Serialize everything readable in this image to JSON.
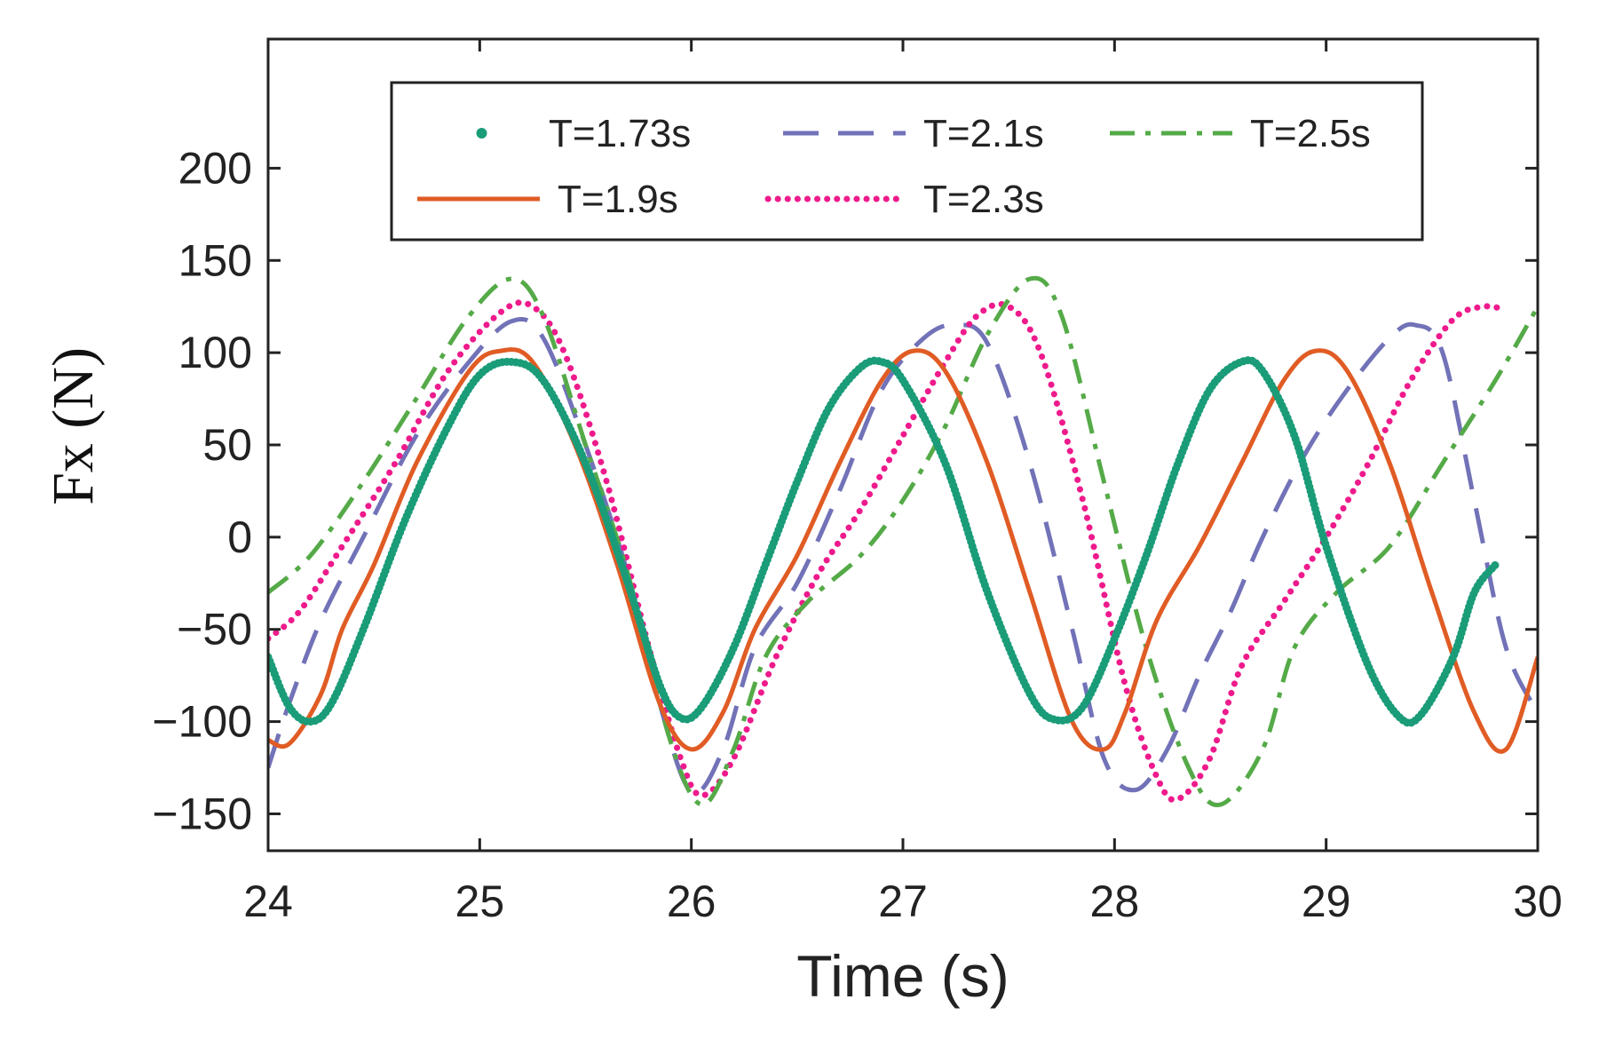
{
  "chart_data": {
    "type": "line",
    "title": "",
    "xlabel": "Time (s)",
    "ylabel": "Fx (N)",
    "xlim": [
      24,
      30
    ],
    "ylim": [
      -170,
      270
    ],
    "xticks": [
      24,
      25,
      26,
      27,
      28,
      29,
      30
    ],
    "yticks": [
      -150,
      -100,
      -50,
      0,
      50,
      100,
      150,
      200
    ],
    "xtick_labels": [
      "24",
      "25",
      "26",
      "27",
      "28",
      "29",
      "30"
    ],
    "ytick_labels": [
      "−150",
      "−100",
      "−50",
      "0",
      "50",
      "100",
      "150",
      "200"
    ],
    "grid": false,
    "legend_position": "top",
    "series": [
      {
        "name": "T=1.73s",
        "color": "#1a9c79",
        "style": "dot",
        "points": [
          [
            24.0,
            -65
          ],
          [
            24.1,
            -92
          ],
          [
            24.2,
            -100
          ],
          [
            24.3,
            -90
          ],
          [
            24.45,
            -50
          ],
          [
            24.65,
            10
          ],
          [
            24.85,
            60
          ],
          [
            25.0,
            88
          ],
          [
            25.15,
            95
          ],
          [
            25.3,
            85
          ],
          [
            25.5,
            40
          ],
          [
            25.7,
            -25
          ],
          [
            25.85,
            -80
          ],
          [
            25.95,
            -98
          ],
          [
            26.05,
            -92
          ],
          [
            26.2,
            -60
          ],
          [
            26.35,
            -15
          ],
          [
            26.5,
            30
          ],
          [
            26.65,
            70
          ],
          [
            26.8,
            92
          ],
          [
            26.9,
            95
          ],
          [
            27.0,
            85
          ],
          [
            27.2,
            40
          ],
          [
            27.4,
            -30
          ],
          [
            27.6,
            -85
          ],
          [
            27.72,
            -99
          ],
          [
            27.85,
            -92
          ],
          [
            28.0,
            -55
          ],
          [
            28.15,
            -10
          ],
          [
            28.3,
            40
          ],
          [
            28.45,
            80
          ],
          [
            28.6,
            95
          ],
          [
            28.7,
            90
          ],
          [
            28.85,
            55
          ],
          [
            29.0,
            -5
          ],
          [
            29.2,
            -70
          ],
          [
            29.35,
            -98
          ],
          [
            29.45,
            -96
          ],
          [
            29.6,
            -65
          ],
          [
            29.7,
            -30
          ],
          [
            29.8,
            -15
          ]
        ]
      },
      {
        "name": "T=2.1s",
        "color": "#7272b8",
        "style": "dash",
        "points": [
          [
            24.0,
            -125
          ],
          [
            24.1,
            -90
          ],
          [
            24.25,
            -45
          ],
          [
            24.45,
            0
          ],
          [
            24.7,
            55
          ],
          [
            24.95,
            95
          ],
          [
            25.15,
            117
          ],
          [
            25.3,
            108
          ],
          [
            25.5,
            50
          ],
          [
            25.7,
            -20
          ],
          [
            25.85,
            -90
          ],
          [
            26.0,
            -138
          ],
          [
            26.15,
            -115
          ],
          [
            26.3,
            -60
          ],
          [
            26.5,
            -25
          ],
          [
            26.7,
            25
          ],
          [
            26.9,
            80
          ],
          [
            27.1,
            108
          ],
          [
            27.25,
            115
          ],
          [
            27.4,
            105
          ],
          [
            27.6,
            40
          ],
          [
            27.8,
            -50
          ],
          [
            27.95,
            -120
          ],
          [
            28.1,
            -137
          ],
          [
            28.25,
            -115
          ],
          [
            28.4,
            -75
          ],
          [
            28.55,
            -40
          ],
          [
            28.7,
            0
          ],
          [
            28.9,
            45
          ],
          [
            29.1,
            80
          ],
          [
            29.3,
            108
          ],
          [
            29.42,
            115
          ],
          [
            29.55,
            100
          ],
          [
            29.7,
            20
          ],
          [
            29.85,
            -60
          ],
          [
            30.0,
            -95
          ]
        ]
      },
      {
        "name": "T=2.5s",
        "color": "#55aa48",
        "style": "dashdot",
        "points": [
          [
            24.0,
            -30
          ],
          [
            24.2,
            -10
          ],
          [
            24.45,
            30
          ],
          [
            24.7,
            75
          ],
          [
            24.95,
            120
          ],
          [
            25.15,
            140
          ],
          [
            25.3,
            120
          ],
          [
            25.5,
            50
          ],
          [
            25.7,
            -20
          ],
          [
            25.9,
            -110
          ],
          [
            26.05,
            -145
          ],
          [
            26.2,
            -115
          ],
          [
            26.35,
            -65
          ],
          [
            26.55,
            -35
          ],
          [
            26.8,
            -10
          ],
          [
            27.0,
            20
          ],
          [
            27.2,
            60
          ],
          [
            27.4,
            110
          ],
          [
            27.6,
            140
          ],
          [
            27.75,
            120
          ],
          [
            27.95,
            30
          ],
          [
            28.15,
            -60
          ],
          [
            28.35,
            -125
          ],
          [
            28.5,
            -145
          ],
          [
            28.7,
            -115
          ],
          [
            28.85,
            -60
          ],
          [
            29.05,
            -30
          ],
          [
            29.3,
            -5
          ],
          [
            29.55,
            40
          ],
          [
            29.8,
            85
          ],
          [
            30.0,
            125
          ]
        ]
      },
      {
        "name": "T=1.9s",
        "color": "#e05c24",
        "style": "solid",
        "points": [
          [
            24.0,
            -110
          ],
          [
            24.1,
            -112
          ],
          [
            24.25,
            -85
          ],
          [
            24.35,
            -50
          ],
          [
            24.5,
            -15
          ],
          [
            24.7,
            40
          ],
          [
            24.95,
            90
          ],
          [
            25.1,
            101
          ],
          [
            25.25,
            95
          ],
          [
            25.45,
            50
          ],
          [
            25.65,
            -15
          ],
          [
            25.85,
            -90
          ],
          [
            26.0,
            -115
          ],
          [
            26.15,
            -95
          ],
          [
            26.3,
            -50
          ],
          [
            26.5,
            -10
          ],
          [
            26.7,
            40
          ],
          [
            26.9,
            85
          ],
          [
            27.05,
            101
          ],
          [
            27.2,
            90
          ],
          [
            27.4,
            40
          ],
          [
            27.6,
            -30
          ],
          [
            27.8,
            -100
          ],
          [
            27.95,
            -115
          ],
          [
            28.05,
            -95
          ],
          [
            28.2,
            -45
          ],
          [
            28.4,
            -5
          ],
          [
            28.6,
            40
          ],
          [
            28.8,
            85
          ],
          [
            28.95,
            101
          ],
          [
            29.1,
            90
          ],
          [
            29.3,
            40
          ],
          [
            29.5,
            -30
          ],
          [
            29.7,
            -95
          ],
          [
            29.85,
            -115
          ],
          [
            30.0,
            -65
          ]
        ]
      },
      {
        "name": "T=2.3s",
        "color": "#ee1a8c",
        "style": "dotdense",
        "points": [
          [
            24.0,
            -55
          ],
          [
            24.15,
            -40
          ],
          [
            24.35,
            -5
          ],
          [
            24.6,
            40
          ],
          [
            24.85,
            90
          ],
          [
            25.1,
            122
          ],
          [
            25.25,
            125
          ],
          [
            25.4,
            100
          ],
          [
            25.6,
            30
          ],
          [
            25.8,
            -60
          ],
          [
            25.95,
            -120
          ],
          [
            26.05,
            -140
          ],
          [
            26.2,
            -120
          ],
          [
            26.4,
            -65
          ],
          [
            26.6,
            -20
          ],
          [
            26.8,
            15
          ],
          [
            27.0,
            55
          ],
          [
            27.2,
            95
          ],
          [
            27.35,
            120
          ],
          [
            27.5,
            125
          ],
          [
            27.65,
            100
          ],
          [
            27.85,
            20
          ],
          [
            28.05,
            -80
          ],
          [
            28.2,
            -130
          ],
          [
            28.3,
            -142
          ],
          [
            28.45,
            -120
          ],
          [
            28.6,
            -70
          ],
          [
            28.8,
            -35
          ],
          [
            29.0,
            0
          ],
          [
            29.2,
            40
          ],
          [
            29.4,
            85
          ],
          [
            29.6,
            118
          ],
          [
            29.75,
            125
          ],
          [
            29.85,
            123
          ]
        ]
      }
    ]
  },
  "legend": {
    "entries": [
      "T=1.73s",
      "T=2.1s",
      "T=2.5s",
      "T=1.9s",
      "T=2.3s"
    ]
  }
}
